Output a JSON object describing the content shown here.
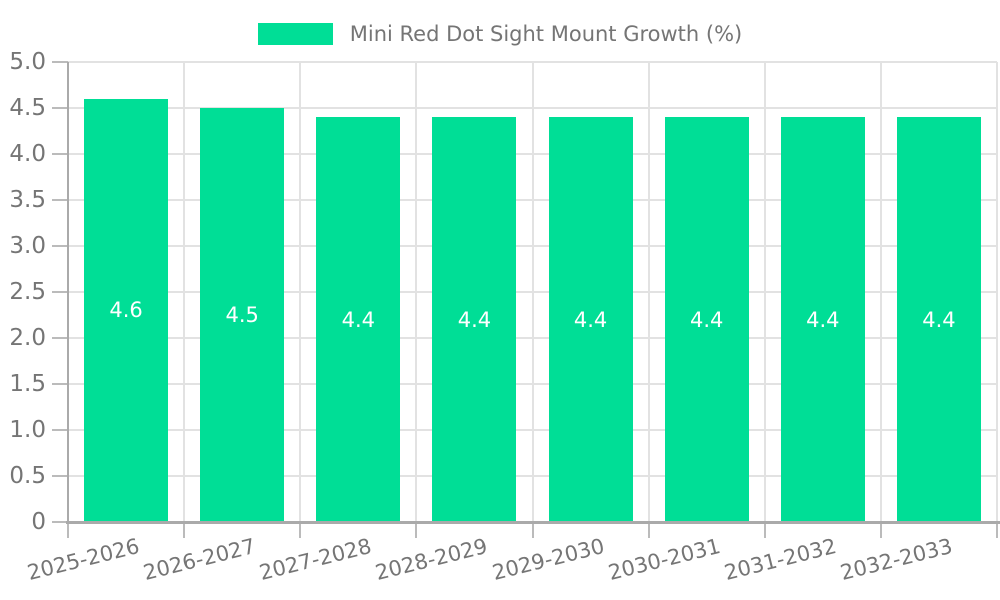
{
  "legend": {
    "label": "Mini Red Dot Sight Mount Growth (%)"
  },
  "chart_data": {
    "type": "bar",
    "title": "Mini Red Dot Sight Mount Growth (%)",
    "categories": [
      "2025-2026",
      "2026-2027",
      "2027-2028",
      "2028-2029",
      "2029-2030",
      "2030-2031",
      "2031-2032",
      "2032-2033"
    ],
    "values": [
      4.6,
      4.5,
      4.4,
      4.4,
      4.4,
      4.4,
      4.4,
      4.4
    ],
    "bar_labels": [
      "4.6",
      "4.5",
      "4.4",
      "4.4",
      "4.4",
      "4.4",
      "4.4",
      "4.4"
    ],
    "xlabel": "",
    "ylabel": "",
    "ylim": [
      0,
      5
    ],
    "yticks": [
      0,
      0.5,
      1,
      1.5,
      2,
      2.5,
      3,
      3.5,
      4,
      4.5,
      5
    ],
    "ytick_labels": [
      "0",
      "0.5",
      "1.0",
      "1.5",
      "2.0",
      "2.5",
      "3.0",
      "3.5",
      "4.0",
      "4.5",
      "5.0"
    ],
    "grid": true,
    "legend_position": "top-center",
    "xtick_rotation_deg": 14,
    "colors": {
      "bar": "#00DE96",
      "bar_label": "#FFFFFF",
      "grid": "#E2E2E2",
      "axis": "#AAAAAA",
      "tick": "#BBBBBB",
      "tick_text": "#757575",
      "background": "#FFFFFF"
    }
  }
}
